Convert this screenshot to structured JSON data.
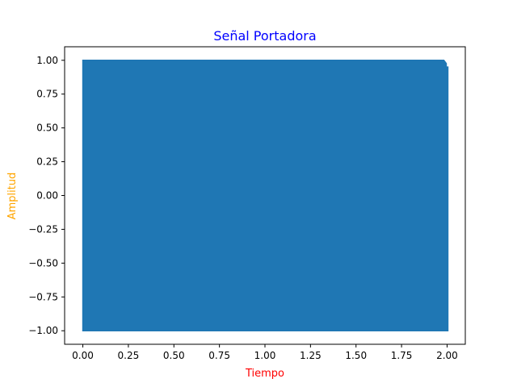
{
  "chart_data": {
    "type": "line",
    "title": "Señal Portadora",
    "xlabel": "Tiempo",
    "ylabel": "Amplitud",
    "xlim": [
      -0.1,
      2.1
    ],
    "ylim": [
      -1.1,
      1.1
    ],
    "x_ticks": [
      "0.00",
      "0.25",
      "0.50",
      "0.75",
      "1.00",
      "1.25",
      "1.50",
      "1.75",
      "2.00"
    ],
    "y_ticks": [
      "1.00",
      "0.75",
      "0.50",
      "0.25",
      "0.00",
      "−0.25",
      "−0.50",
      "−0.75",
      "−1.00"
    ],
    "x_tick_values": [
      0,
      0.25,
      0.5,
      0.75,
      1.0,
      1.25,
      1.5,
      1.75,
      2.0
    ],
    "y_tick_values": [
      1.0,
      0.75,
      0.5,
      0.25,
      0.0,
      -0.25,
      -0.5,
      -0.75,
      -1.0
    ],
    "series": [
      {
        "kind": "carrier-sinusoid",
        "amplitude": 1.0,
        "x_start": 0.0,
        "x_end": 2.0,
        "end_value": 0.95,
        "color": "#1f77b4"
      }
    ],
    "grid": false,
    "colors": {
      "title": "#0000ff",
      "xlabel": "#ff0000",
      "ylabel": "#ffa500",
      "line": "#1f77b4"
    }
  }
}
